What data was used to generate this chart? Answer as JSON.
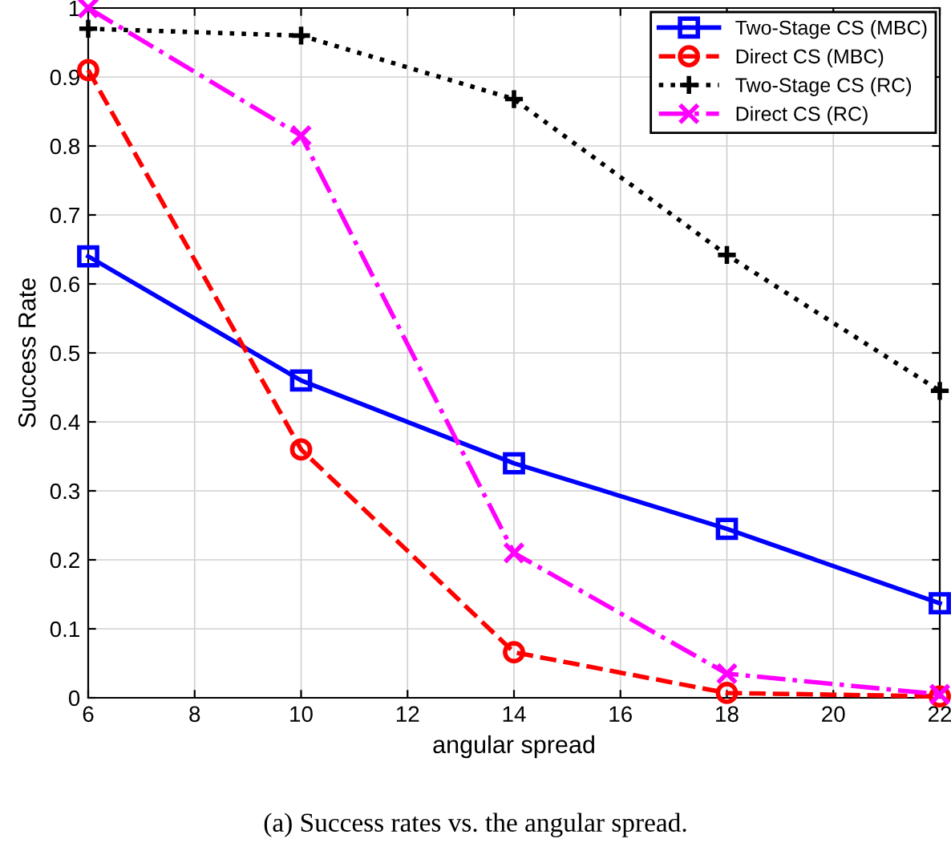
{
  "chart_data": {
    "type": "line",
    "xlabel": "angular spread",
    "ylabel": "Success Rate",
    "x": [
      6,
      10,
      14,
      18,
      22
    ],
    "series": [
      {
        "name": "Two-Stage CS (MBC)",
        "color": "#0000ff",
        "values": [
          0.64,
          0.46,
          0.34,
          0.245,
          0.137
        ],
        "marker": "square",
        "line_style": "solid"
      },
      {
        "name": "Direct CS (MBC)",
        "color": "#ff0000",
        "values": [
          0.91,
          0.36,
          0.066,
          0.007,
          0.002
        ],
        "marker": "circle",
        "line_style": "dashed"
      },
      {
        "name": "Two-Stage CS (RC)",
        "color": "#000000",
        "values": [
          0.97,
          0.96,
          0.868,
          0.642,
          0.445
        ],
        "marker": "plus",
        "line_style": "dotted"
      },
      {
        "name": "Direct CS (RC)",
        "color": "#ff00ff",
        "values": [
          1.0,
          0.815,
          0.21,
          0.035,
          0.005
        ],
        "marker": "cross",
        "line_style": "dashdot"
      }
    ],
    "xlim": [
      6,
      22
    ],
    "ylim": [
      0,
      1
    ],
    "xticks": [
      6,
      8,
      10,
      12,
      14,
      16,
      18,
      20,
      22
    ],
    "yticks": [
      0,
      0.1,
      0.2,
      0.3,
      0.4,
      0.5,
      0.6,
      0.7,
      0.8,
      0.9,
      1
    ],
    "grid": true,
    "legend": "top right",
    "annotations": [
      "(a) Success rates vs. the angular spread."
    ]
  }
}
